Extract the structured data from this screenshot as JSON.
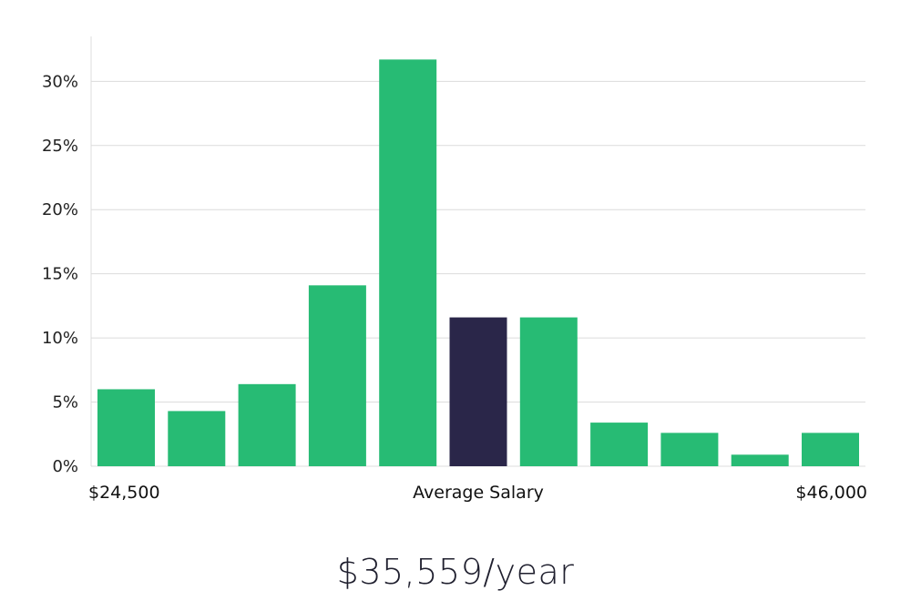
{
  "chart_data": {
    "type": "bar",
    "x_labels": {
      "left": "$24,500",
      "center": "Average Salary",
      "right": "$46,000"
    },
    "values": [
      6.0,
      4.3,
      6.4,
      14.1,
      31.7,
      11.6,
      11.6,
      3.4,
      2.6,
      0.9,
      2.6
    ],
    "highlight_index": 5,
    "yticks": [
      "0%",
      "5%",
      "10%",
      "15%",
      "20%",
      "25%",
      "30%"
    ],
    "ylim": [
      0,
      33.5
    ],
    "grid": true,
    "colors": {
      "bar": "#27bb74",
      "highlight": "#2a2649"
    }
  },
  "summary": {
    "salary_text": "$35,559/year"
  }
}
